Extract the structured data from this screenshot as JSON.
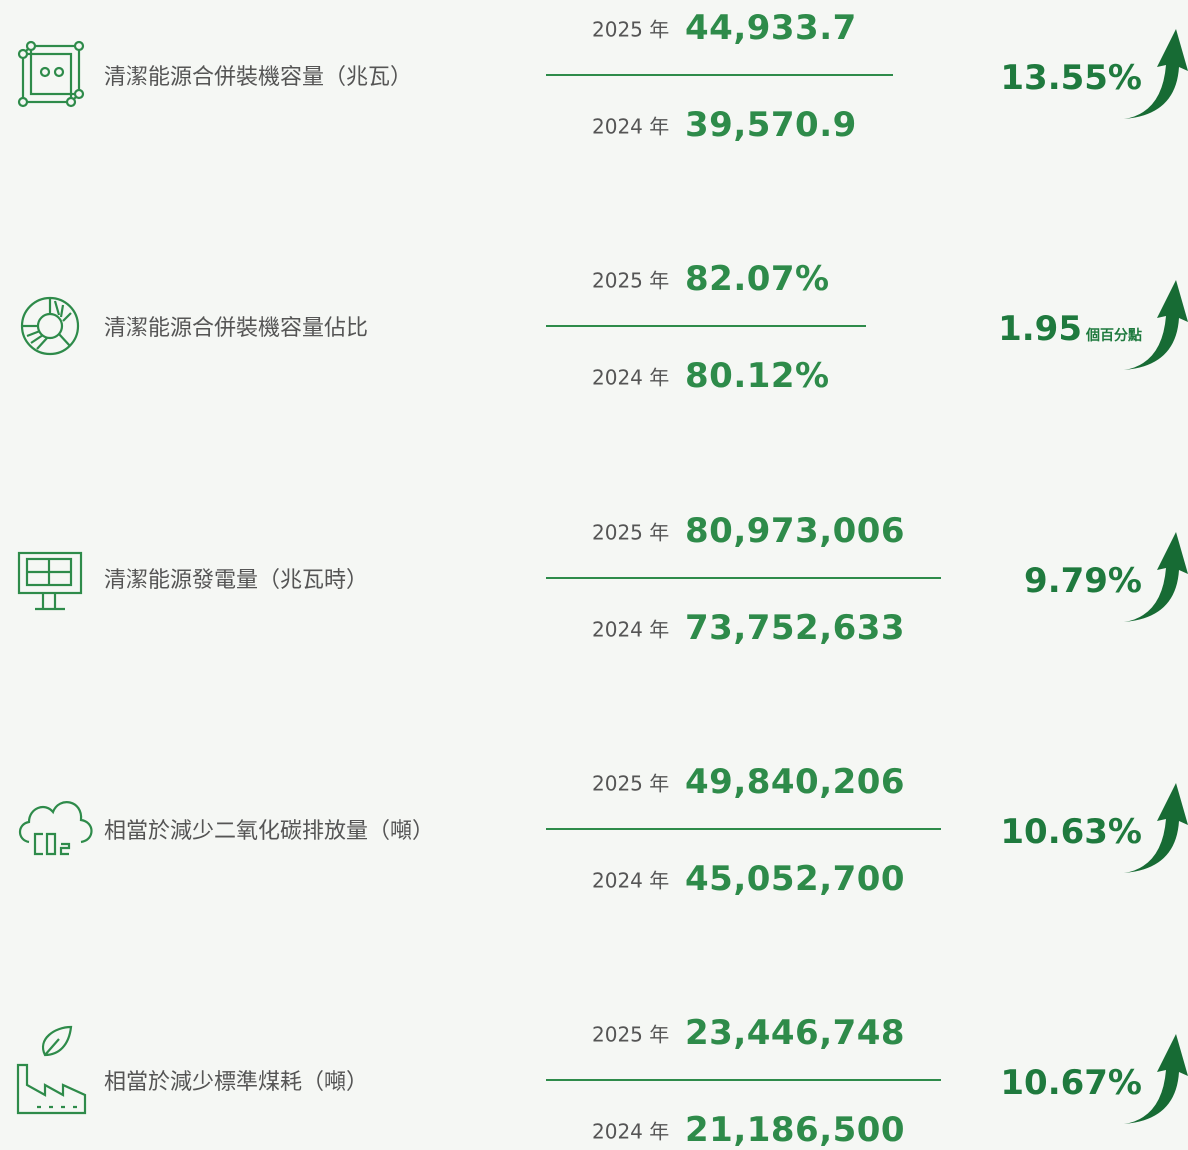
{
  "rows": [
    {
      "label": "清潔能源合併裝機容量（兆瓦）",
      "year_a": "2025 年",
      "value_a": "44,933.7",
      "year_b": "2024 年",
      "value_b": "39,570.9",
      "change": "13.55%"
    },
    {
      "label": "清潔能源合併裝機容量佔比",
      "year_a": "2025 年",
      "value_a": "82.07%",
      "year_b": "2024 年",
      "value_b": "80.12%",
      "change": "1.95",
      "change_unit": "個百分點"
    },
    {
      "label": "清潔能源發電量（兆瓦時）",
      "year_a": "2025 年",
      "value_a": "80,973,006",
      "year_b": "2024 年",
      "value_b": "73,752,633",
      "change": "9.79%"
    },
    {
      "label": "相當於減少二氧化碳排放量（噸）",
      "year_a": "2025 年",
      "value_a": "49,840,206",
      "year_b": "2024 年",
      "value_b": "45,052,700",
      "change": "10.63%"
    },
    {
      "label": "相當於減少標準煤耗（噸）",
      "year_a": "2025 年",
      "value_a": "23,446,748",
      "year_b": "2024 年",
      "value_b": "21,186,500",
      "change": "10.67%"
    }
  ]
}
